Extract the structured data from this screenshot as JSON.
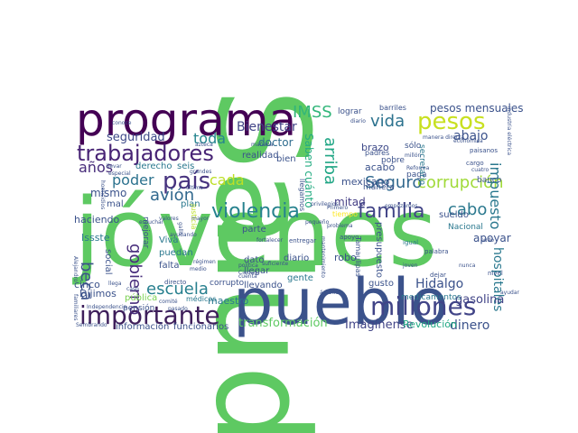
{
  "words": [
    {
      "text": "Salud",
      "color": "#5ec962",
      "vertical": true
    },
    {
      "text": "jóvenes",
      "color": "#5ec962"
    },
    {
      "text": "pueblo",
      "color": "#3b528b"
    },
    {
      "text": "programa",
      "color": "#440154"
    },
    {
      "text": "importante",
      "color": "#3e1f5b"
    },
    {
      "text": "millones",
      "color": "#414487"
    },
    {
      "text": "violencia",
      "color": "#26828e"
    },
    {
      "text": "familia",
      "color": "#414487"
    },
    {
      "text": "pesos",
      "color": "#c8e020"
    },
    {
      "text": "trabajadores",
      "color": "#482475"
    },
    {
      "text": "país",
      "color": "#46327e"
    },
    {
      "text": "corrupción",
      "color": "#a0da39"
    },
    {
      "text": "vida",
      "color": "#2c728e"
    },
    {
      "text": "Seguro",
      "color": "#31688e"
    },
    {
      "text": "cabo",
      "color": "#2a788e"
    },
    {
      "text": "gobierno",
      "color": "#472d7b"
    },
    {
      "text": "escuela",
      "color": "#277f8e"
    },
    {
      "text": "avión",
      "color": "#31688e"
    },
    {
      "text": "cada",
      "color": "#bddf26"
    },
    {
      "text": "poder",
      "color": "#2c728e"
    },
    {
      "text": "beca",
      "color": "#3b528b"
    },
    {
      "text": "años",
      "color": "#472c7a"
    },
    {
      "text": "toda",
      "color": "#25858e"
    },
    {
      "text": "IMSS",
      "color": "#32b67a"
    },
    {
      "text": "Bienestar",
      "color": "#414487"
    },
    {
      "text": "seguridad",
      "color": "#3e4a89"
    },
    {
      "text": "doctor",
      "color": "#2f6c8e"
    },
    {
      "text": "pesos mensuales",
      "color": "#3b528b"
    },
    {
      "text": "arriba",
      "color": "#21a685"
    },
    {
      "text": "Saben cuánto",
      "color": "#25ac82"
    },
    {
      "text": "mitad",
      "color": "#433d84"
    },
    {
      "text": "abajo",
      "color": "#3b528b"
    },
    {
      "text": "impuesto",
      "color": "#2a788e"
    },
    {
      "text": "hospitales",
      "color": "#2a788e"
    },
    {
      "text": "Hidalgo",
      "color": "#3b528b"
    },
    {
      "text": "dinero",
      "color": "#3b528b"
    },
    {
      "text": "transformación",
      "color": "#5ec962"
    },
    {
      "text": "Imagínense",
      "color": "#414487"
    },
    {
      "text": "Revolución",
      "color": "#22a884"
    },
    {
      "text": "gasolina",
      "color": "#414487"
    },
    {
      "text": "mexicano",
      "color": "#3b528b"
    },
    {
      "text": "brazo",
      "color": "#3e4a89"
    },
    {
      "text": "acabó",
      "color": "#3b528b"
    },
    {
      "text": "apoyar",
      "color": "#3b528b"
    },
    {
      "text": "mismo",
      "color": "#3b528b"
    },
    {
      "text": "haciendo",
      "color": "#3b528b"
    },
    {
      "text": "cinco",
      "color": "#3b528b"
    },
    {
      "text": "Dijimos",
      "color": "#3b528b"
    },
    {
      "text": "Issste",
      "color": "#2a788e"
    },
    {
      "text": "social",
      "color": "#3b528b"
    },
    {
      "text": "mal",
      "color": "#3b528b"
    },
    {
      "text": "maestro",
      "color": "#2a788e"
    },
    {
      "text": "pública",
      "color": "#7ad151"
    },
    {
      "text": "información",
      "color": "#3b528b"
    },
    {
      "text": "funcionarios",
      "color": "#3b528b"
    },
    {
      "text": "llevando",
      "color": "#3b528b"
    },
    {
      "text": "diario",
      "color": "#3b528b"
    },
    {
      "text": "robo",
      "color": "#3b528b"
    },
    {
      "text": "gente",
      "color": "#2a788e"
    },
    {
      "text": "sueldo",
      "color": "#3b528b"
    },
    {
      "text": "Nacional",
      "color": "#2a788e"
    },
    {
      "text": "presupuesto",
      "color": "#3b528b"
    },
    {
      "text": "gusto",
      "color": "#3b528b"
    },
    {
      "text": "medicamentos",
      "color": "#2a788e"
    },
    {
      "text": "realidad",
      "color": "#3b528b"
    },
    {
      "text": "bien",
      "color": "#3b528b"
    },
    {
      "text": "derecho",
      "color": "#2a788e"
    },
    {
      "text": "seis",
      "color": "#2a788e"
    },
    {
      "text": "plan",
      "color": "#2a788e"
    },
    {
      "text": "Viva",
      "color": "#2a788e"
    },
    {
      "text": "puedan",
      "color": "#2a788e"
    },
    {
      "text": "falta",
      "color": "#3b528b"
    },
    {
      "text": "dato",
      "color": "#3b528b"
    },
    {
      "text": "llegar",
      "color": "#3b528b"
    },
    {
      "text": "parte",
      "color": "#3b528b"
    },
    {
      "text": "corrupto",
      "color": "#3b528b"
    },
    {
      "text": "médicos",
      "color": "#2a788e"
    },
    {
      "text": "pensión",
      "color": "#3b528b"
    },
    {
      "text": "lograr",
      "color": "#3b528b"
    },
    {
      "text": "barriles",
      "color": "#3b528b"
    },
    {
      "text": "manera",
      "color": "#3b528b"
    },
    {
      "text": "paga",
      "color": "#3b528b"
    },
    {
      "text": "banco",
      "color": "#3b528b"
    },
    {
      "text": "sólo",
      "color": "#3b528b"
    },
    {
      "text": "pobre",
      "color": "#3b528b"
    },
    {
      "text": "padres",
      "color": "#3b528b"
    },
    {
      "text": "secretario",
      "color": "#2a788e"
    },
    {
      "text": "mejorar",
      "color": "#3b528b"
    },
    {
      "text": "justicia",
      "color": "#bddf26"
    },
    {
      "text": "tiempo",
      "color": "#fde725"
    },
    {
      "text": "llegamos",
      "color": "#3b528b"
    },
    {
      "text": "apoyo",
      "color": "#3b528b"
    },
    {
      "text": "entregar",
      "color": "#3b528b"
    },
    {
      "text": "Tamaulipas",
      "color": "#3b528b"
    },
    {
      "text": "dejar",
      "color": "#3b528b"
    },
    {
      "text": "nivel",
      "color": "#3b528b"
    },
    {
      "text": "igual",
      "color": "#2a788e"
    },
    {
      "text": "palabra",
      "color": "#3b528b"
    },
    {
      "text": "cargo",
      "color": "#3b528b"
    },
    {
      "text": "paisanos",
      "color": "#3b528b"
    },
    {
      "text": "cuatro",
      "color": "#3b528b"
    },
    {
      "text": "Reforma",
      "color": "#3b528b"
    },
    {
      "text": "directo",
      "color": "#3b528b"
    },
    {
      "text": "política",
      "color": "#3b528b"
    },
    {
      "text": "Primero",
      "color": "#3b528b"
    },
    {
      "text": "pequeño",
      "color": "#3b528b"
    },
    {
      "text": "escuchar",
      "color": "#3b528b"
    },
    {
      "text": "valores",
      "color": "#3b528b"
    },
    {
      "text": "régimen",
      "color": "#3b528b"
    },
    {
      "text": "caso",
      "color": "#3b528b"
    },
    {
      "text": "pasado",
      "color": "#3b528b"
    },
    {
      "text": "llega",
      "color": "#3b528b"
    },
    {
      "text": "comité",
      "color": "#3b528b"
    },
    {
      "text": "último",
      "color": "#3b528b"
    },
    {
      "text": "Independencia",
      "color": "#3b528b"
    },
    {
      "text": "ayudando",
      "color": "#3b528b"
    },
    {
      "text": "Sembrando",
      "color": "#3b528b"
    },
    {
      "text": "familiares",
      "color": "#3b528b"
    },
    {
      "text": "homicidios",
      "color": "#3b528b"
    },
    {
      "text": "Alejandro",
      "color": "#3b528b"
    },
    {
      "text": "especial",
      "color": "#3b528b"
    },
    {
      "text": "llevar",
      "color": "#3b528b"
    },
    {
      "text": "conoce",
      "color": "#3b528b"
    },
    {
      "text": "azteca",
      "color": "#3b528b"
    },
    {
      "text": "mañana",
      "color": "#3b528b"
    },
    {
      "text": "diario",
      "color": "#3b528b"
    },
    {
      "text": "industria eléctrica",
      "color": "#3b528b"
    },
    {
      "text": "económica",
      "color": "#3b528b"
    },
    {
      "text": "manera directa",
      "color": "#3b528b"
    },
    {
      "text": "problema",
      "color": "#3b528b"
    },
    {
      "text": "mantenimiento",
      "color": "#3b528b"
    },
    {
      "text": "suficiente",
      "color": "#3b528b"
    },
    {
      "text": "Ciudad",
      "color": "#3b528b"
    },
    {
      "text": "cuenta",
      "color": "#3b528b"
    },
    {
      "text": "medio",
      "color": "#3b528b"
    },
    {
      "text": "grandes",
      "color": "#3b528b"
    },
    {
      "text": "mayor",
      "color": "#3b528b"
    },
    {
      "text": "gallo",
      "color": "#3b528b"
    },
    {
      "text": "fortalecer",
      "color": "#3b528b"
    },
    {
      "text": "privilegios",
      "color": "#3b528b"
    },
    {
      "text": "empezamos",
      "color": "#3b528b"
    },
    {
      "text": "millón",
      "color": "#3b528b"
    },
    {
      "text": "pudo",
      "color": "#3b528b"
    },
    {
      "text": "nunca",
      "color": "#3b528b"
    },
    {
      "text": "joven",
      "color": "#3b528b"
    },
    {
      "text": "ámbito",
      "color": "#3b528b"
    },
    {
      "text": "ayudar",
      "color": "#3b528b"
    }
  ]
}
